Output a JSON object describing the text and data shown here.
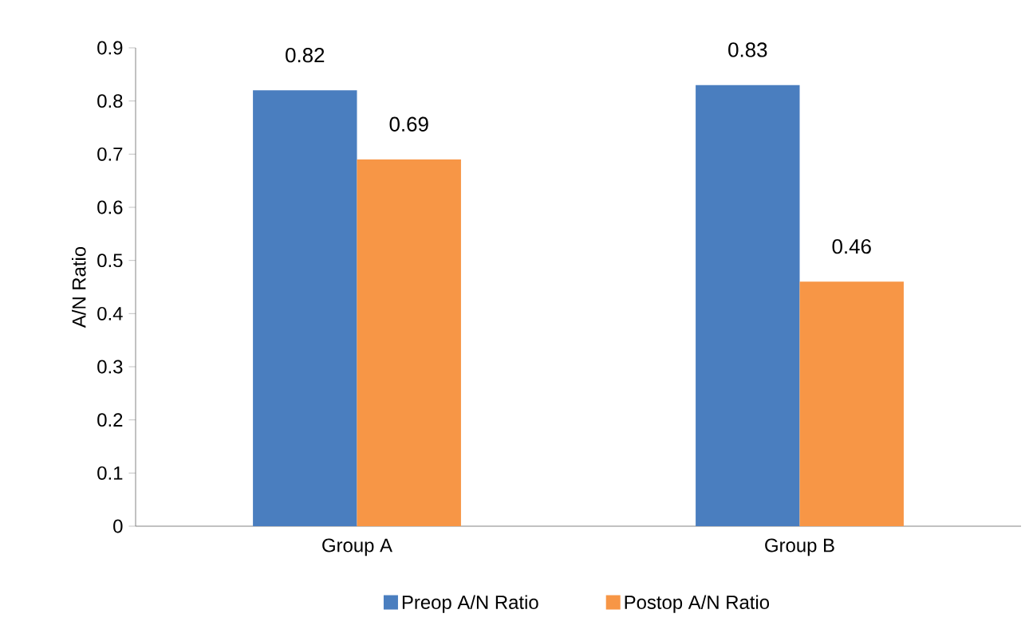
{
  "chart_data": {
    "type": "bar",
    "ylabel": "A/N Ratio",
    "categories": [
      "Group A",
      "Group B"
    ],
    "series": [
      {
        "name": "Preop A/N Ratio",
        "color": "#4a7ebf",
        "values": [
          0.82,
          0.83
        ]
      },
      {
        "name": "Postop A/N Ratio",
        "color": "#f79646",
        "values": [
          0.69,
          0.46
        ]
      }
    ],
    "ylim": [
      0,
      0.9
    ],
    "yticks": [
      0,
      0.1,
      0.2,
      0.3,
      0.4,
      0.5,
      0.6,
      0.7,
      0.8,
      0.9
    ],
    "grid": false,
    "legend": "bottom",
    "data_labels": true
  }
}
